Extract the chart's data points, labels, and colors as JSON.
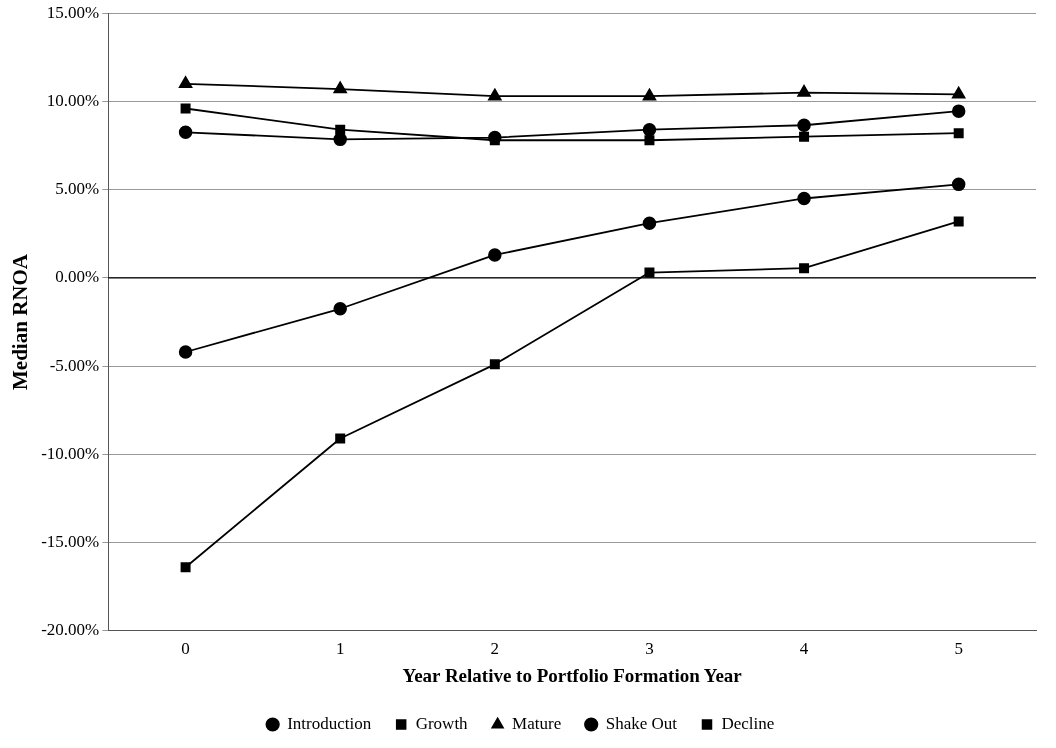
{
  "chart_data": {
    "type": "line",
    "xlabel": "Year Relative to Portfolio Formation Year",
    "ylabel": "Median RNOA",
    "categories": [
      "0",
      "1",
      "2",
      "3",
      "4",
      "5"
    ],
    "series": [
      {
        "name": "Introduction",
        "color": "#000000",
        "marker": "circle",
        "values": [
          -4.2,
          -1.75,
          1.3,
          3.1,
          4.5,
          5.3
        ]
      },
      {
        "name": "Growth",
        "color": "#000000",
        "marker": "square",
        "values": [
          9.6,
          8.4,
          7.8,
          7.8,
          8.0,
          8.2
        ]
      },
      {
        "name": "Mature",
        "color": "#000000",
        "marker": "triangle",
        "values": [
          11.0,
          10.7,
          10.3,
          10.3,
          10.5,
          10.4
        ]
      },
      {
        "name": "Shake Out",
        "color": "#000000",
        "marker": "circle",
        "values": [
          8.25,
          7.85,
          7.95,
          8.4,
          8.65,
          9.45
        ]
      },
      {
        "name": "Decline",
        "color": "#000000",
        "marker": "square",
        "values": [
          -16.4,
          -9.1,
          -4.9,
          0.3,
          0.55,
          3.2
        ]
      }
    ],
    "ylim": [
      -20,
      15
    ],
    "yticks": [
      {
        "value": -20,
        "label": "-20.00%"
      },
      {
        "value": -15,
        "label": "-15.00%"
      },
      {
        "value": -10,
        "label": "-10.00%"
      },
      {
        "value": -5,
        "label": "-5.00%"
      },
      {
        "value": 0,
        "label": "0.00%"
      },
      {
        "value": 5,
        "label": "5.00%"
      },
      {
        "value": 10,
        "label": "10.00%"
      },
      {
        "value": 15,
        "label": "15.00%"
      }
    ],
    "ref_lines": [
      {
        "axis": "y",
        "value": 0,
        "color": "#000000"
      }
    ],
    "grid": "y",
    "legend": "bottom",
    "line_style": "solid"
  }
}
